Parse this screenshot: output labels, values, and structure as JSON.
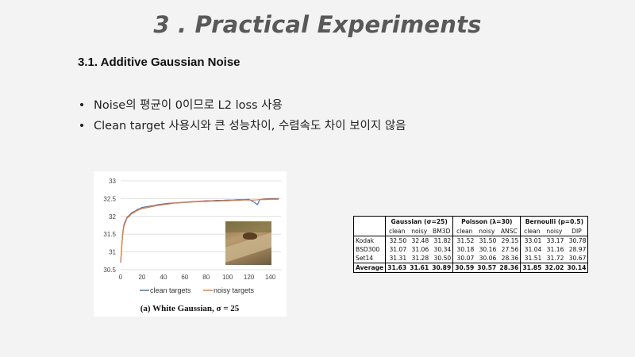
{
  "slide": {
    "title": "3 . Practical Experiments",
    "section_heading": "3.1. Additive Gaussian Noise",
    "bullets": [
      "Noise의 평균이 0이므로 L2 loss 사용",
      "Clean target 사용시와 큰 성능차이, 수렴속도 차이 보이지 않음"
    ]
  },
  "chart_data": {
    "type": "line",
    "caption": "(a) White Gaussian, σ = 25",
    "x_ticks": [
      0,
      20,
      40,
      60,
      80,
      100,
      120,
      140
    ],
    "y_ticks": [
      "30.5",
      "31",
      "31.5",
      "32",
      "32.5",
      "33"
    ],
    "xlim": [
      0,
      150
    ],
    "ylim": [
      30.5,
      33
    ],
    "grid": true,
    "legend_position": "bottom-center",
    "series": [
      {
        "name": "clean targets",
        "color": "#4472c4",
        "x": [
          0,
          1,
          2,
          3,
          4,
          5,
          6,
          8,
          10,
          12,
          14,
          16,
          18,
          20,
          25,
          30,
          35,
          40,
          45,
          50,
          55,
          60,
          65,
          70,
          75,
          80,
          85,
          90,
          95,
          100,
          105,
          110,
          115,
          120,
          125,
          128,
          130,
          135,
          140,
          145,
          148
        ],
        "y": [
          30.7,
          31.15,
          31.55,
          31.75,
          31.85,
          31.9,
          31.98,
          32.03,
          32.1,
          32.13,
          32.16,
          32.2,
          32.22,
          32.25,
          32.28,
          32.3,
          32.33,
          32.35,
          32.37,
          32.38,
          32.39,
          32.4,
          32.41,
          32.42,
          32.43,
          32.44,
          32.44,
          32.45,
          32.45,
          32.46,
          32.46,
          32.47,
          32.47,
          32.48,
          32.4,
          32.33,
          32.47,
          32.49,
          32.5,
          32.5,
          32.5
        ]
      },
      {
        "name": "noisy targets",
        "color": "#ed7d31",
        "x": [
          0,
          1,
          2,
          3,
          4,
          5,
          6,
          8,
          10,
          12,
          14,
          16,
          18,
          20,
          25,
          30,
          35,
          40,
          45,
          50,
          55,
          60,
          65,
          70,
          75,
          80,
          85,
          90,
          95,
          100,
          105,
          110,
          115,
          120,
          125,
          130,
          135,
          140,
          145,
          148
        ],
        "y": [
          30.72,
          31.1,
          31.5,
          31.7,
          31.8,
          31.87,
          31.95,
          32.0,
          32.07,
          32.1,
          32.14,
          32.17,
          32.2,
          32.22,
          32.25,
          32.28,
          32.31,
          32.33,
          32.35,
          32.37,
          32.38,
          32.39,
          32.4,
          32.41,
          32.42,
          32.42,
          32.43,
          32.43,
          32.44,
          32.44,
          32.45,
          32.45,
          32.46,
          32.46,
          32.46,
          32.47,
          32.47,
          32.48,
          32.48,
          32.48
        ]
      }
    ]
  },
  "table": {
    "groups": [
      "Gaussian (σ=25)",
      "Poisson (λ=30)",
      "Bernoulli (p=0.5)"
    ],
    "subheaders": [
      "clean",
      "noisy",
      "BM3D",
      "clean",
      "noisy",
      "ANSC",
      "clean",
      "noisy",
      "DIP"
    ],
    "rows": [
      {
        "name": "Kodak",
        "values": [
          "32.50",
          "32.48",
          "31.82",
          "31.52",
          "31.50",
          "29.15",
          "33.01",
          "33.17",
          "30.78"
        ]
      },
      {
        "name": "BSD300",
        "values": [
          "31.07",
          "31.06",
          "30.34",
          "30.18",
          "30.16",
          "27.56",
          "31.04",
          "31.16",
          "28.97"
        ]
      },
      {
        "name": "Set14",
        "values": [
          "31.31",
          "31.28",
          "30.50",
          "30.07",
          "30.06",
          "28.36",
          "31.51",
          "31.72",
          "30.67"
        ]
      }
    ],
    "average": {
      "name": "Average",
      "values": [
        "31.63",
        "31.61",
        "30.89",
        "30.59",
        "30.57",
        "28.36",
        "31.85",
        "32.02",
        "30.14"
      ]
    }
  }
}
